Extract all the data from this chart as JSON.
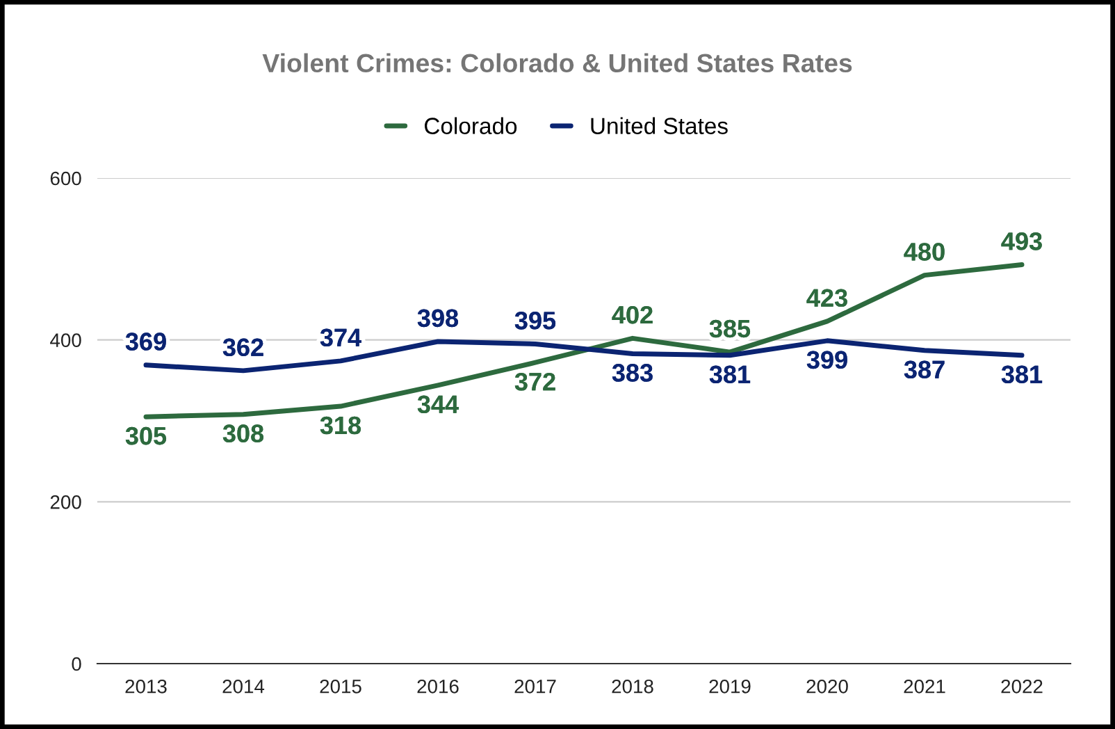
{
  "chart_data": {
    "type": "line",
    "title": "Violent Crimes: Colorado & United States Rates",
    "categories": [
      "2013",
      "2014",
      "2015",
      "2016",
      "2017",
      "2018",
      "2019",
      "2020",
      "2021",
      "2022"
    ],
    "series": [
      {
        "name": "Colorado",
        "color": "#2d6a3e",
        "values": [
          305,
          308,
          318,
          344,
          372,
          402,
          385,
          423,
          480,
          493
        ]
      },
      {
        "name": "United States",
        "color": "#0b2472",
        "values": [
          369,
          362,
          374,
          398,
          395,
          383,
          381,
          399,
          387,
          381
        ]
      }
    ],
    "ylim": [
      0,
      600
    ],
    "yticks": [
      0,
      200,
      400,
      600
    ],
    "grid": "y",
    "legend": "top",
    "data_labels": true,
    "marker": "none",
    "line_style": "solid"
  }
}
